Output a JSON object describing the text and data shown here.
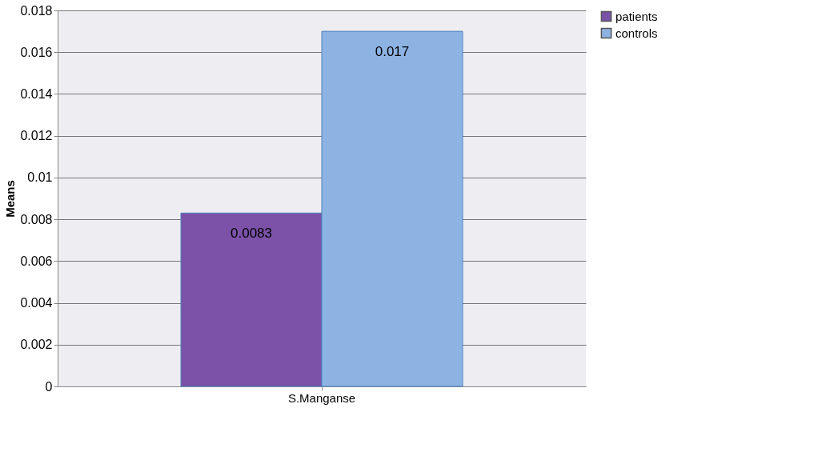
{
  "chart_data": {
    "type": "bar",
    "ylabel": "Means",
    "categories": [
      "S.Manganse"
    ],
    "series": [
      {
        "name": "patients",
        "color": "#7b52a8",
        "values": [
          0.0083
        ]
      },
      {
        "name": "controls",
        "color": "#8db3e2",
        "values": [
          0.017
        ]
      }
    ],
    "ylim": [
      0,
      0.018
    ],
    "yticks": [
      0,
      0.002,
      0.004,
      0.006,
      0.008,
      0.01,
      0.012,
      0.014,
      0.016,
      0.018
    ],
    "grid": "y",
    "legend": "right",
    "data_labels": true
  }
}
